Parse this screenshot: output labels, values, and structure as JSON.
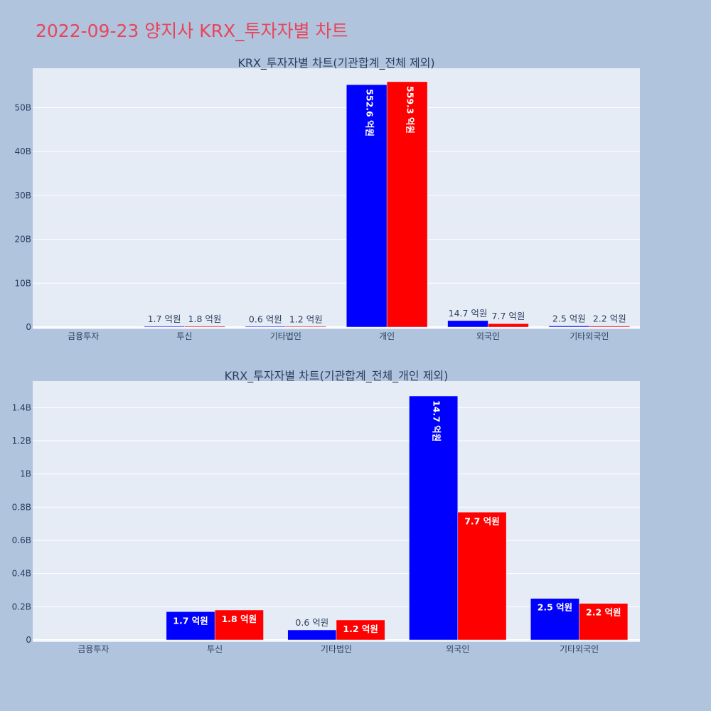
{
  "page": {
    "title": "2022-09-23 양지사 KRX_투자자별 차트"
  },
  "colors": {
    "background": "#b0c4de",
    "plot_bg": "#e5ecf6",
    "title": "#e8455a",
    "series_a": "#0000ff",
    "series_b": "#ff0000"
  },
  "chart_data": [
    {
      "type": "bar",
      "title": "KRX_투자자별 차트(기관합계_전체 제외)",
      "categories": [
        "금융투자",
        "투신",
        "기타법인",
        "개인",
        "외국인",
        "기타외국인"
      ],
      "ylim": [
        0,
        59
      ],
      "yticks": [
        0,
        10,
        20,
        30,
        40,
        50
      ],
      "ytick_labels": [
        "0",
        "10B",
        "20B",
        "30B",
        "40B",
        "50B"
      ],
      "grid": true,
      "series": [
        {
          "color": "#0000ff",
          "values": [
            0,
            0.17,
            0.06,
            55.26,
            1.47,
            0.25
          ],
          "labels": [
            "",
            "1.7 억원",
            "0.6 억원",
            "552.6 억원",
            "14.7 억원",
            "2.5 억원"
          ]
        },
        {
          "color": "#ff0000",
          "values": [
            0,
            0.18,
            0.12,
            55.93,
            0.77,
            0.22
          ],
          "labels": [
            "",
            "1.8 억원",
            "1.2 억원",
            "559.3 억원",
            "7.7 억원",
            "2.2 억원"
          ]
        }
      ]
    },
    {
      "type": "bar",
      "title": "KRX_투자자별 차트(기관합계_전체_개인 제외)",
      "categories": [
        "금융투자",
        "투신",
        "기타법인",
        "외국인",
        "기타외국인"
      ],
      "ylim": [
        0,
        1.56
      ],
      "yticks": [
        0,
        0.2,
        0.4,
        0.6,
        0.8,
        1.0,
        1.2,
        1.4
      ],
      "ytick_labels": [
        "0",
        "0.2B",
        "0.4B",
        "0.6B",
        "0.8B",
        "1B",
        "1.2B",
        "1.4B"
      ],
      "grid": true,
      "series": [
        {
          "color": "#0000ff",
          "values": [
            0,
            0.17,
            0.06,
            1.47,
            0.25
          ],
          "labels": [
            "",
            "1.7 억원",
            "0.6 억원",
            "14.7 억원",
            "2.5 억원"
          ]
        },
        {
          "color": "#ff0000",
          "values": [
            0,
            0.18,
            0.12,
            0.77,
            0.22
          ],
          "labels": [
            "",
            "1.8 억원",
            "1.2 억원",
            "7.7 억원",
            "2.2 억원"
          ]
        }
      ]
    }
  ]
}
